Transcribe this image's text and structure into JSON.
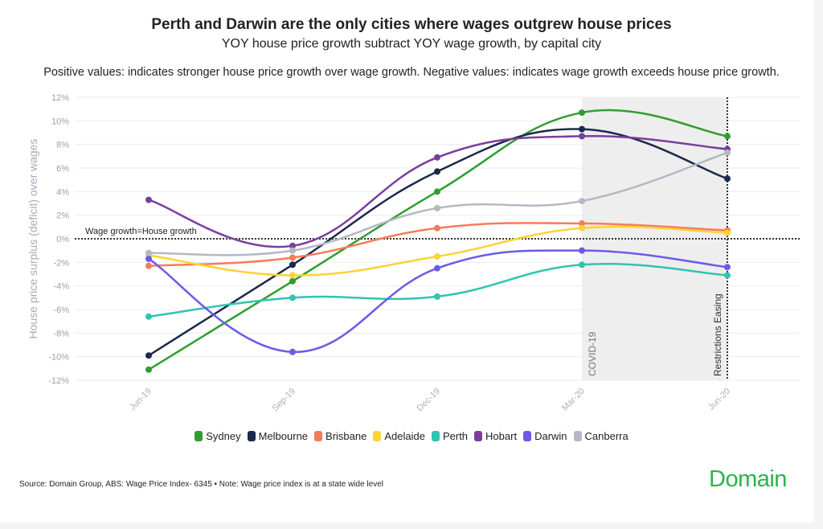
{
  "title": "Perth and Darwin are the only cities where wages outgrew house prices",
  "subtitle": "YOY house price growth subtract YOY wage growth, by capital city",
  "note": "Positive values: indicates stronger house price growth over wage growth. Negative values: indicates wage growth exceeds house price growth.",
  "source": "Source: Domain Group, ABS: Wage Price Index- 6345 • Note: Wage price index is at a state wide level",
  "logo": "Domain",
  "chart_data": {
    "type": "line",
    "title": "Perth and Darwin are the only cities where wages outgrew house prices",
    "xlabel": "",
    "ylabel": "House price surplus (deficit) over wages",
    "categories": [
      "Jun-19",
      "Sep-19",
      "Dec-19",
      "Mar-20",
      "Jun-20"
    ],
    "ylim": [
      -12,
      12
    ],
    "yticks": [
      "12%",
      "10%",
      "8%",
      "6%",
      "4%",
      "2%",
      "0%",
      "-2%",
      "-4%",
      "-6%",
      "-8%",
      "-10%",
      "-12%"
    ],
    "grid": true,
    "smoothed": true,
    "legend_position": "bottom",
    "reference_line": {
      "label": "Wage growth=House growth",
      "value": 0
    },
    "shaded_region": {
      "from": "Mar-20",
      "to": "Jun-20",
      "labels": [
        "COVID-19",
        "Restrictions Easing"
      ]
    },
    "series": [
      {
        "name": "Sydney",
        "color": "#2f9e2f",
        "values": [
          -11.1,
          -3.6,
          4.0,
          10.7,
          8.7
        ]
      },
      {
        "name": "Melbourne",
        "color": "#1b2a4a",
        "values": [
          -9.9,
          -2.2,
          5.7,
          9.3,
          5.1
        ]
      },
      {
        "name": "Brisbane",
        "color": "#f77b5a",
        "values": [
          -2.3,
          -1.6,
          0.9,
          1.3,
          0.7
        ]
      },
      {
        "name": "Adelaide",
        "color": "#fcd335",
        "values": [
          -1.4,
          -3.1,
          -1.5,
          0.9,
          0.5
        ]
      },
      {
        "name": "Perth",
        "color": "#2fc4b2",
        "values": [
          -6.6,
          -5.0,
          -4.9,
          -2.2,
          -3.1
        ]
      },
      {
        "name": "Hobart",
        "color": "#7a3e9d",
        "values": [
          3.3,
          -0.6,
          6.9,
          8.7,
          7.6
        ]
      },
      {
        "name": "Darwin",
        "color": "#6a5be8",
        "values": [
          -1.7,
          -9.6,
          -2.5,
          -1.0,
          -2.4
        ]
      },
      {
        "name": "Canberra",
        "color": "#b5b8c4",
        "values": [
          -1.2,
          -1.0,
          2.6,
          3.2,
          7.3
        ]
      }
    ]
  }
}
